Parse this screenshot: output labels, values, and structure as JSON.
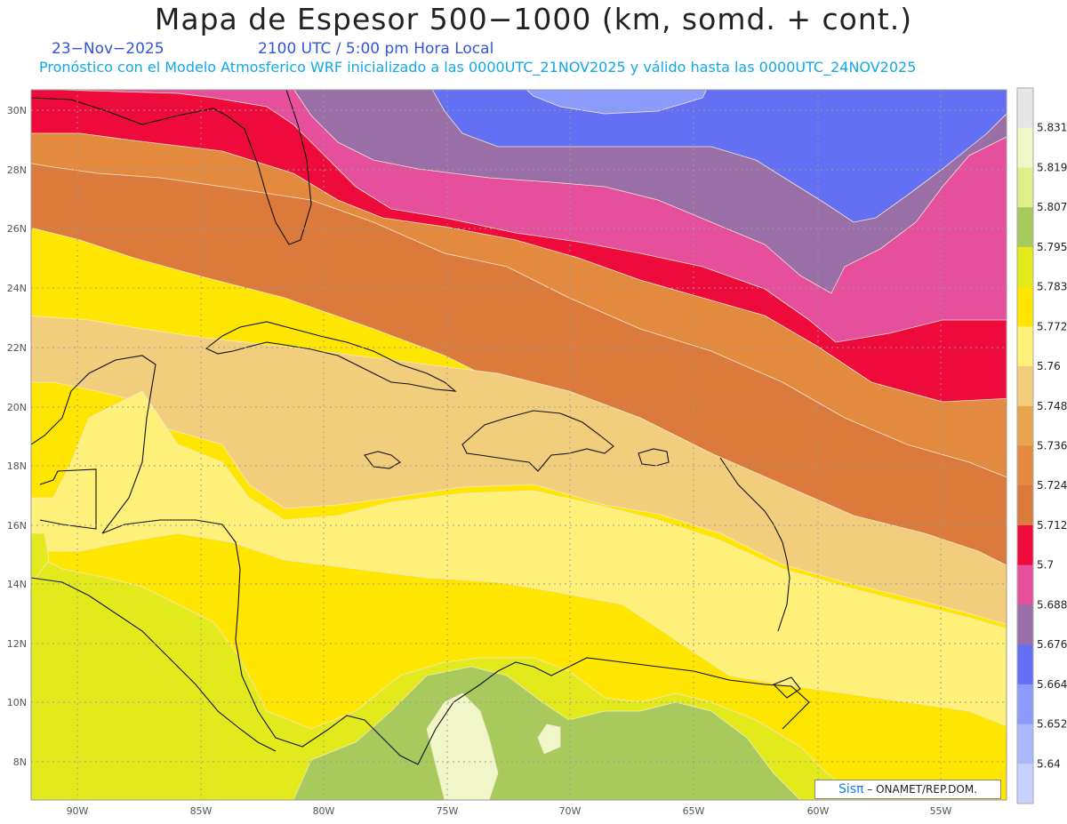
{
  "header": {
    "title": "Mapa de Espesor 500−1000 (km, somd. + cont.)",
    "date": "23−Nov−2025",
    "time": "2100 UTC / 5:00 pm Hora Local",
    "forecast_note": "Pronóstico con el Modelo Atmosferico WRF inicializado a las 0000UTC_21NOV2025 y válido hasta las  0000UTC_24NOV2025"
  },
  "axes": {
    "lat_labels": [
      "30N",
      "28N",
      "26N",
      "24N",
      "22N",
      "20N",
      "18N",
      "16N",
      "14N",
      "12N",
      "10N",
      "8N"
    ],
    "lon_labels": [
      "90W",
      "85W",
      "80W",
      "75W",
      "70W",
      "65W",
      "60W",
      "55W"
    ]
  },
  "colorbar": {
    "labels": [
      "5.831",
      "5.819",
      "5.807",
      "5.795",
      "5.783",
      "5.772",
      "5.76",
      "5.748",
      "5.736",
      "5.724",
      "5.712",
      "5.7",
      "5.688",
      "5.676",
      "5.664",
      "5.652",
      "5.64"
    ],
    "colors": [
      "#e6e6e6",
      "#f1f6c8",
      "#dff08a",
      "#a8c95c",
      "#e2ea1c",
      "#ffe600",
      "#fff07a",
      "#f2cd7c",
      "#eaa44e",
      "#e48a3e",
      "#db7a3a",
      "#ee0a3a",
      "#e54f9c",
      "#9a6ea6",
      "#6470f4",
      "#8b9cfc",
      "#aab8fc",
      "#c8d0fd"
    ]
  },
  "credit": {
    "brand": "Sisπ",
    "org": " – ONAMET/REP.DOM."
  },
  "band_colors": {
    "purple_blue": "#6470f4",
    "violet": "#9a6ea6",
    "magenta": "#e54f9c",
    "red": "#ee0a3a",
    "dark_orange": "#db7a3a",
    "orange": "#e48a3e",
    "light_orange": "#eaa44e",
    "tan": "#f2cd7c",
    "light_yellow": "#fff07a",
    "yellow": "#ffe600",
    "lime": "#e2ea1c",
    "green": "#a8c95c",
    "pale": "#f1f6c8"
  }
}
